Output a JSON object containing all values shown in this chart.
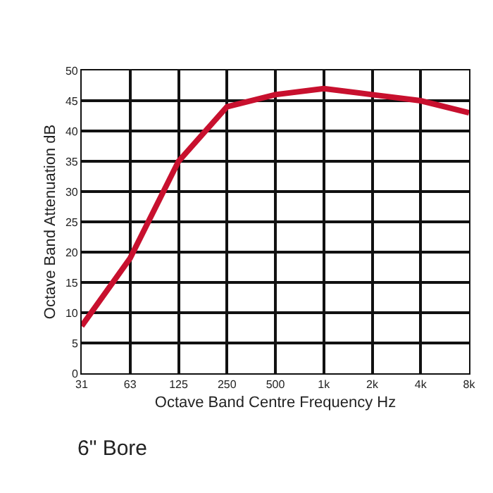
{
  "chart_data": {
    "type": "line",
    "categories": [
      "31",
      "63",
      "125",
      "250",
      "500",
      "1k",
      "2k",
      "4k",
      "8k"
    ],
    "series": [
      {
        "color": "#c8102e",
        "values": [
          7.8,
          19,
          35,
          44,
          46,
          47,
          46,
          45,
          43
        ]
      }
    ],
    "xlabel": "Octave Band Centre Frequency Hz",
    "ylabel": "Octave Band Attenuation dB",
    "annotations": [
      "6\" Bore"
    ],
    "ylim": [
      0,
      50
    ],
    "yticks": [
      0,
      5,
      10,
      15,
      20,
      25,
      30,
      35,
      40,
      45,
      50
    ],
    "grid": true,
    "marker": "none",
    "line_style": "solid"
  }
}
